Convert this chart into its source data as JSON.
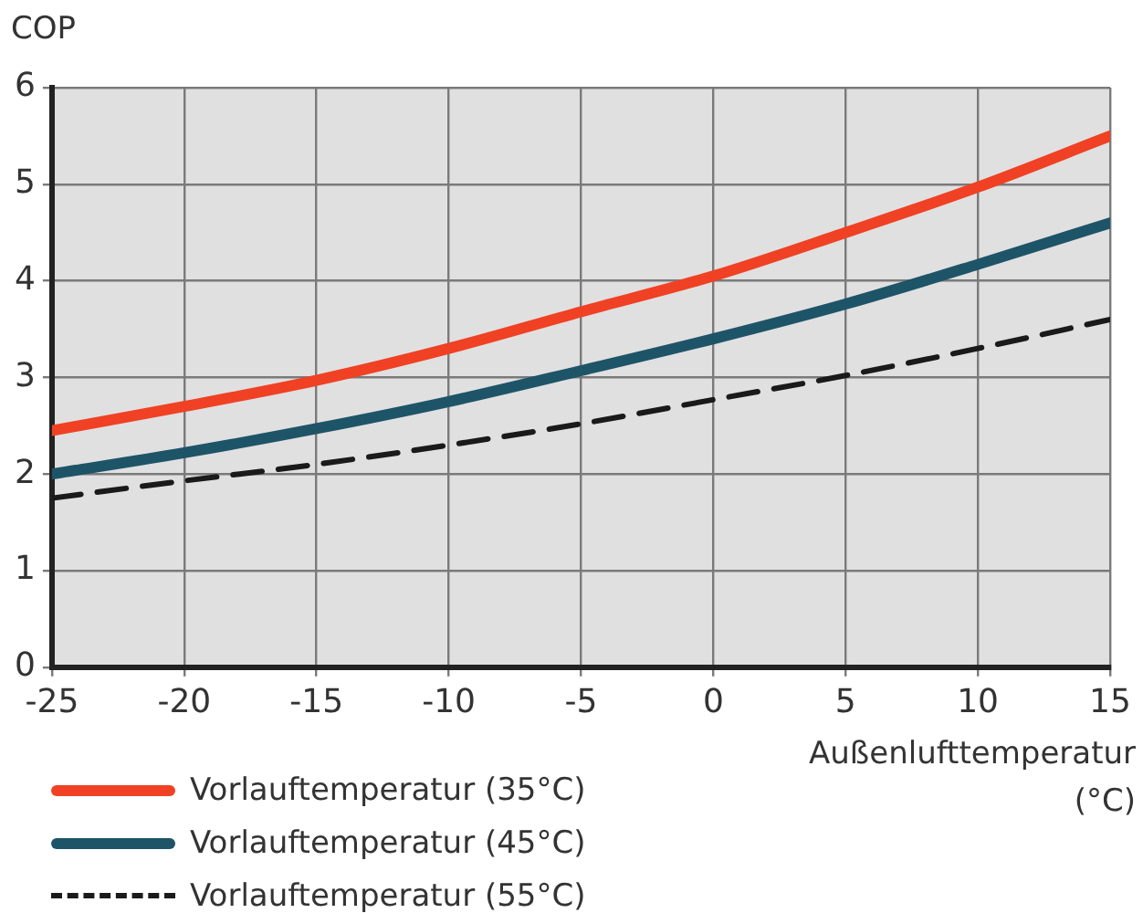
{
  "chart_data": {
    "type": "line",
    "ylabel": "COP",
    "xlabel": "Außenlufttemperatur (°C)",
    "x": [
      -25,
      -20,
      -15,
      -10,
      -5,
      0,
      5,
      10,
      15
    ],
    "series": [
      {
        "name": "Vorlauftemperatur (35°C)",
        "color": "#f04124",
        "values": [
          2.45,
          2.7,
          2.97,
          3.3,
          3.68,
          4.05,
          4.5,
          4.97,
          5.5
        ]
      },
      {
        "name": "Vorlauftemperatur (45°C)",
        "color": "#1e5468",
        "values": [
          2.0,
          2.22,
          2.47,
          2.75,
          3.07,
          3.4,
          3.76,
          4.17,
          4.6
        ]
      },
      {
        "name": "Vorlauftemperatur (55°C)",
        "color": "#1a1a1a",
        "values": [
          1.75,
          1.93,
          2.1,
          2.3,
          2.52,
          2.77,
          3.02,
          3.3,
          3.6
        ],
        "line_style": "dashed"
      }
    ],
    "xlim": [
      -25,
      15
    ],
    "xticks": [
      -25,
      -20,
      -15,
      -10,
      -5,
      0,
      5,
      10,
      15
    ],
    "ylim": [
      0,
      6
    ],
    "yticks": [
      0,
      1,
      2,
      3,
      4,
      5,
      6
    ],
    "grid": true,
    "legend": "bottom left",
    "marker": "none"
  }
}
